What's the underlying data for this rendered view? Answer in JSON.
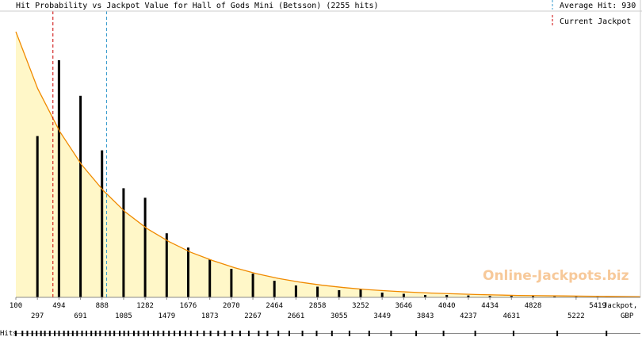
{
  "chart_data": {
    "type": "bar",
    "title": "Hit Probability vs Jackpot Value for Hall of Gods Mini (Betsson) (2255 hits)",
    "xlabel": "Jackpot, GBP",
    "ylabel": "",
    "xlim": [
      100,
      5810
    ],
    "legend": {
      "position": "top-right",
      "average_hit_label": "Average Hit: 930",
      "current_jackpot_label": "Current Jackpot"
    },
    "average_hit": 930,
    "current_jackpot": 439,
    "x_tick_labels_top": [
      "100",
      "494",
      "888",
      "1282",
      "1676",
      "2070",
      "2464",
      "2858",
      "3252",
      "3646",
      "4040",
      "4434",
      "4828",
      "5419"
    ],
    "x_tick_labels_bottom": [
      "297",
      "691",
      "1085",
      "1479",
      "1873",
      "2267",
      "2661",
      "3055",
      "3449",
      "3843",
      "4237",
      "4631",
      "5222"
    ],
    "axis_unit_line1": "Jackpot,",
    "axis_unit_line2": "GBP",
    "hits_row_label": "Hits",
    "watermark": "Online-Jackpots.biz",
    "bins": [
      297,
      494,
      691,
      888,
      1085,
      1282,
      1479,
      1676,
      1873,
      2070,
      2267,
      2464,
      2661,
      2858,
      3055,
      3252,
      3449,
      3646,
      3843,
      4040,
      4237,
      4434,
      4631,
      4828,
      5025,
      5222,
      5419
    ],
    "values": [
      0.68,
      1.0,
      0.85,
      0.62,
      0.46,
      0.42,
      0.27,
      0.21,
      0.16,
      0.12,
      0.1,
      0.07,
      0.05,
      0.045,
      0.03,
      0.035,
      0.02,
      0.015,
      0.01,
      0.01,
      0.008,
      0.006,
      0.006,
      0.005,
      0.004,
      0.003,
      0.003
    ],
    "fit_curve": {
      "x": [
        100,
        300,
        500,
        700,
        900,
        1100,
        1300,
        1500,
        1700,
        1900,
        2100,
        2300,
        2500,
        2700,
        2900,
        3100,
        3300,
        3500,
        3700,
        3900,
        4100,
        4300,
        4500,
        4700,
        4900,
        5100,
        5300,
        5500,
        5700,
        5810
      ],
      "values": [
        1.12,
        0.88,
        0.7,
        0.56,
        0.45,
        0.36,
        0.29,
        0.235,
        0.19,
        0.155,
        0.125,
        0.1,
        0.08,
        0.064,
        0.051,
        0.041,
        0.033,
        0.027,
        0.022,
        0.018,
        0.015,
        0.012,
        0.01,
        0.008,
        0.007,
        0.006,
        0.005,
        0.004,
        0.0035,
        0.003
      ]
    },
    "hits_marks": [
      100,
      160,
      205,
      250,
      290,
      330,
      365,
      410,
      455,
      495,
      540,
      580,
      620,
      660,
      705,
      745,
      790,
      830,
      870,
      920,
      960,
      1000,
      1050,
      1090,
      1130,
      1180,
      1220,
      1270,
      1310,
      1360,
      1400,
      1450,
      1500,
      1550,
      1600,
      1650,
      1700,
      1760,
      1820,
      1880,
      1950,
      2010,
      2080,
      2150,
      2230,
      2320,
      2400,
      2500,
      2600,
      2720,
      2850,
      2990,
      3150,
      3330,
      3530,
      3760,
      4010,
      4300,
      4650,
      5050,
      5500
    ],
    "colors": {
      "area_fill": "#fff7c8",
      "curve": "#f08a00",
      "bars": "#000000",
      "average_line": "#3399cc",
      "current_line": "#cc0000",
      "grid_border": "#cccccc",
      "watermark": "#f7c99a"
    },
    "grid": false
  }
}
